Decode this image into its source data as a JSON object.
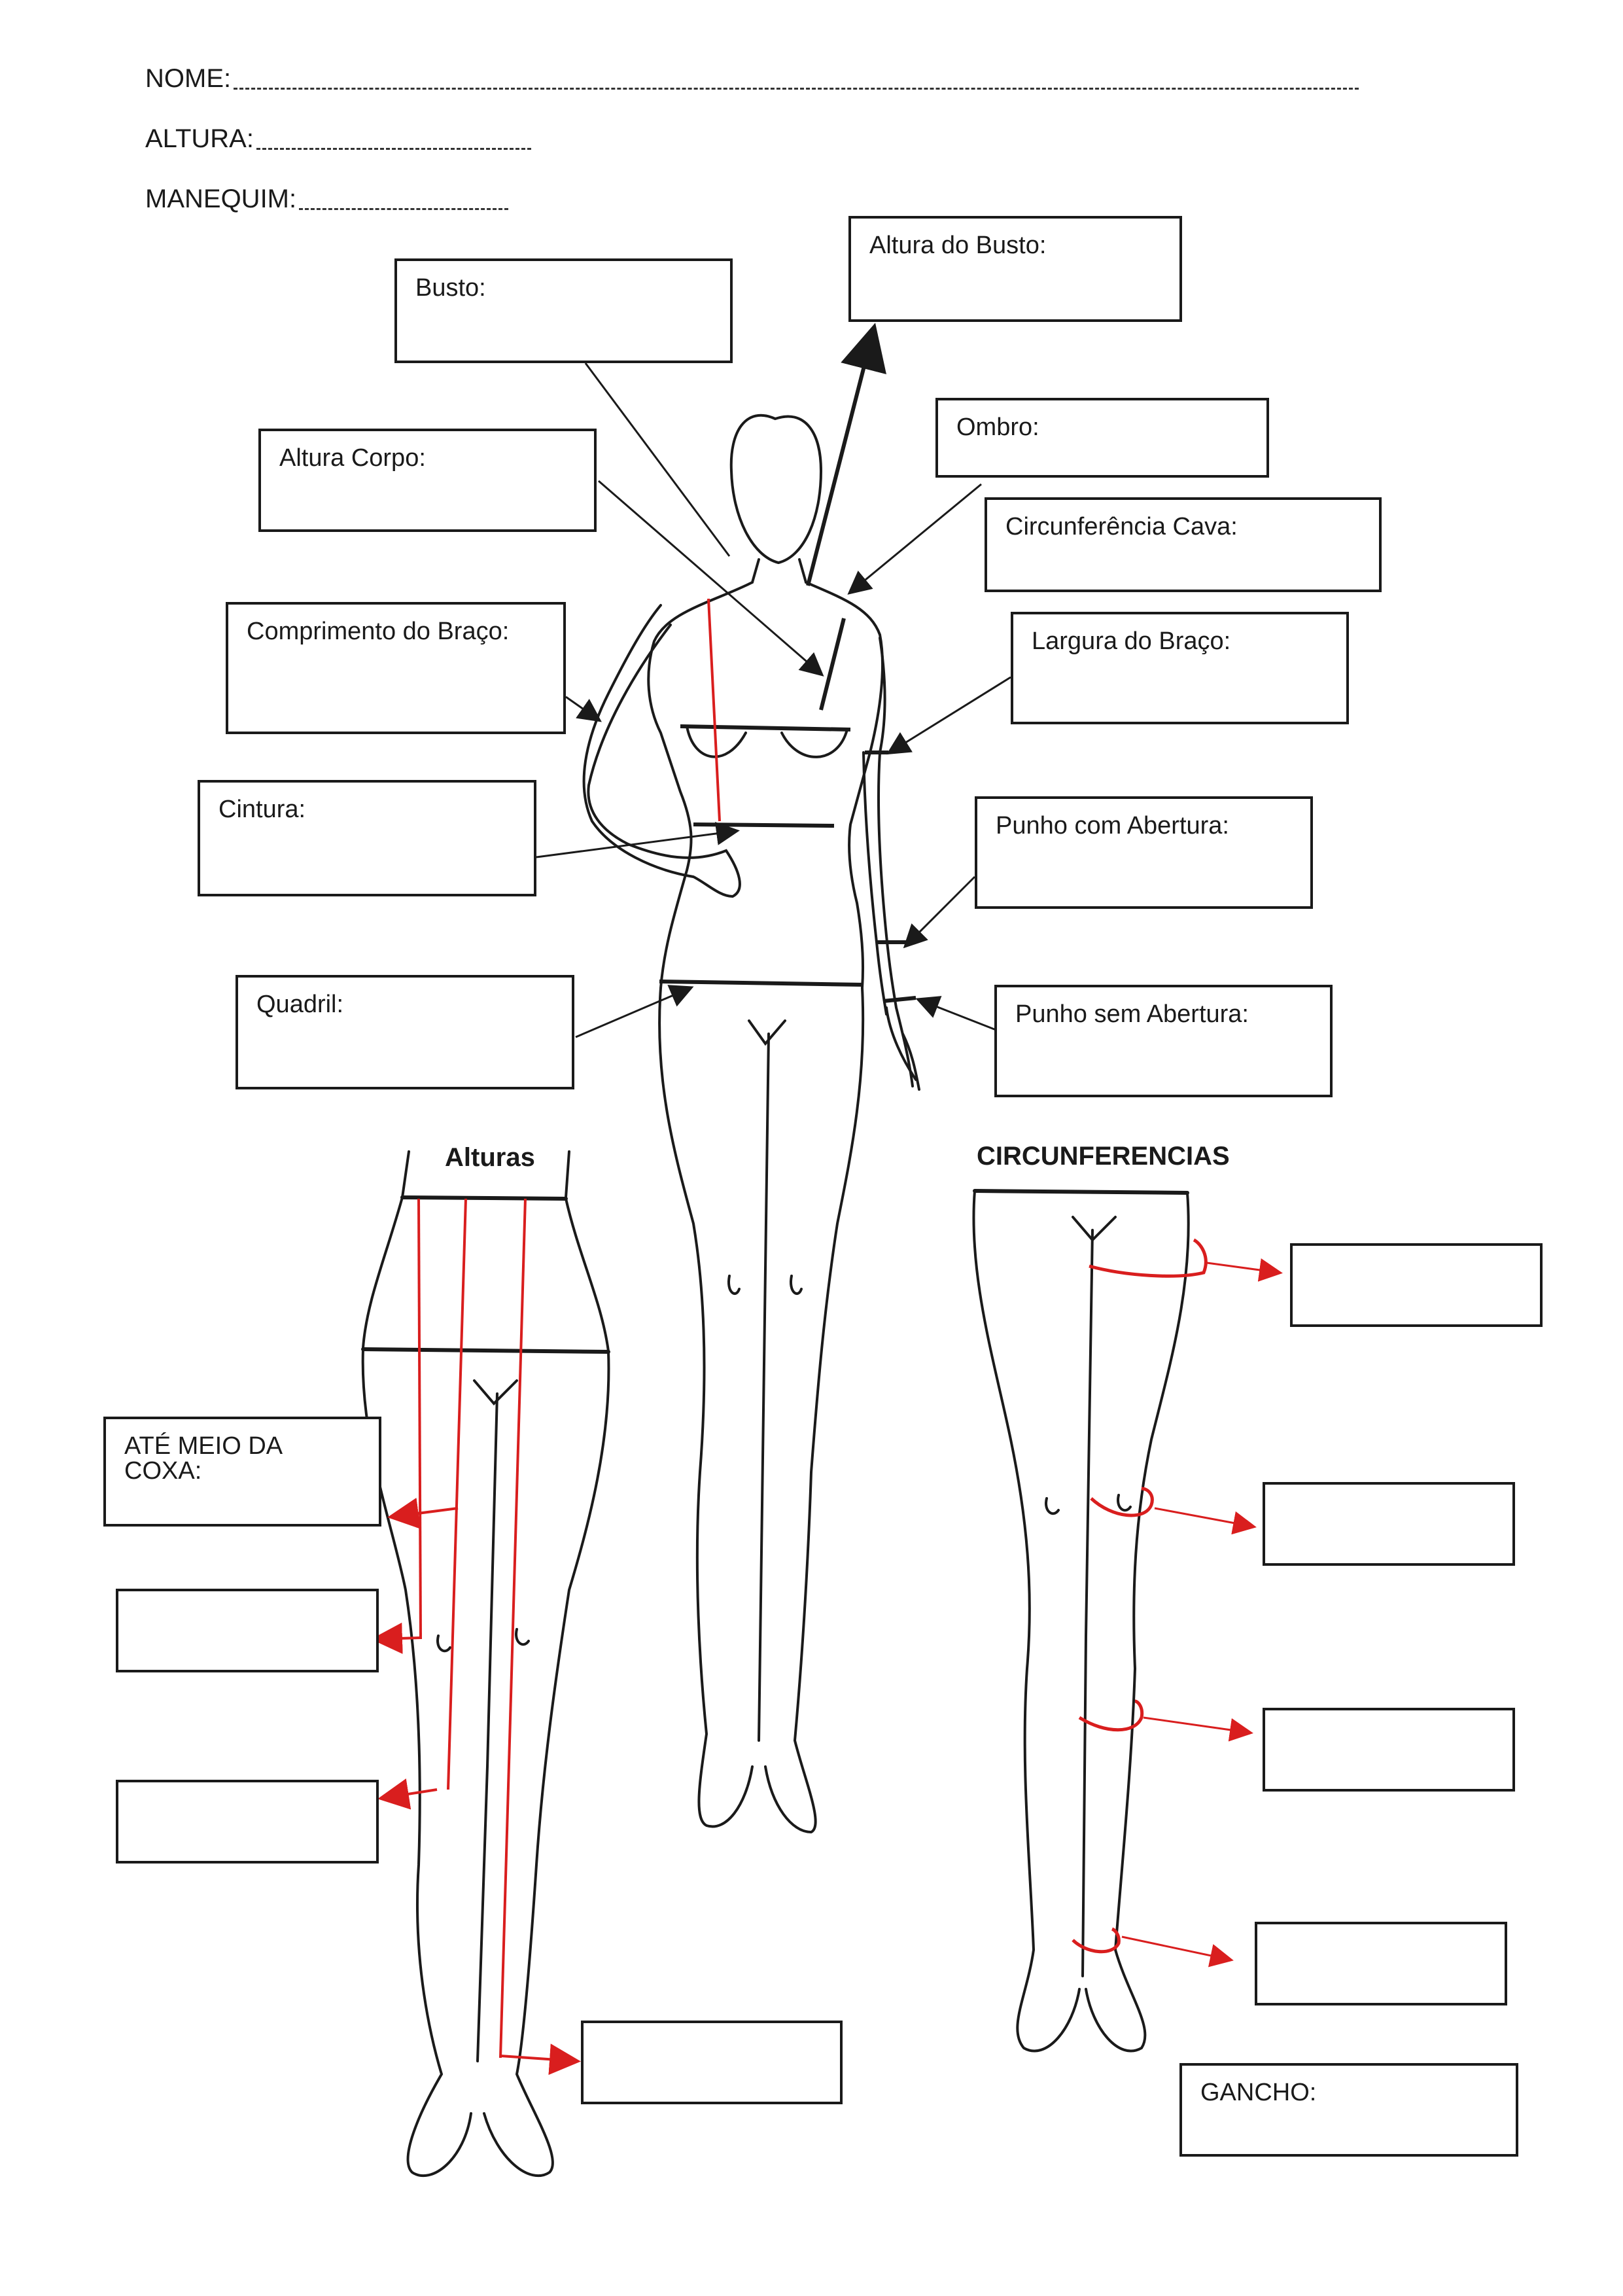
{
  "header": {
    "nome_label": "NOME:",
    "altura_label": "ALTURA:",
    "manequim_label": "MANEQUIM:"
  },
  "front_figure": {
    "busto": "Busto:",
    "altura_do_busto": "Altura do Busto:",
    "ombro": "Ombro:",
    "altura_corpo": "Altura Corpo:",
    "circunferencia_cava": "Circunferência Cava:",
    "comprimento_do_braco": "Comprimento do Braço:",
    "largura_do_braco": "Largura do Braço:",
    "cintura": "Cintura:",
    "punho_com_abertura": "Punho com Abertura:",
    "quadril": "Quadril:",
    "punho_sem_abertura": "Punho sem Abertura:"
  },
  "alturas_section": {
    "title": "Alturas",
    "ate_meio_da_coxa": "ATÉ MEIO DA COXA:"
  },
  "circunferencias_section": {
    "title": "CIRCUNFERENCIAS",
    "gancho": "GANCHO:"
  },
  "colors": {
    "line": "#1a1a1a",
    "measure_red": "#d91e1e"
  }
}
